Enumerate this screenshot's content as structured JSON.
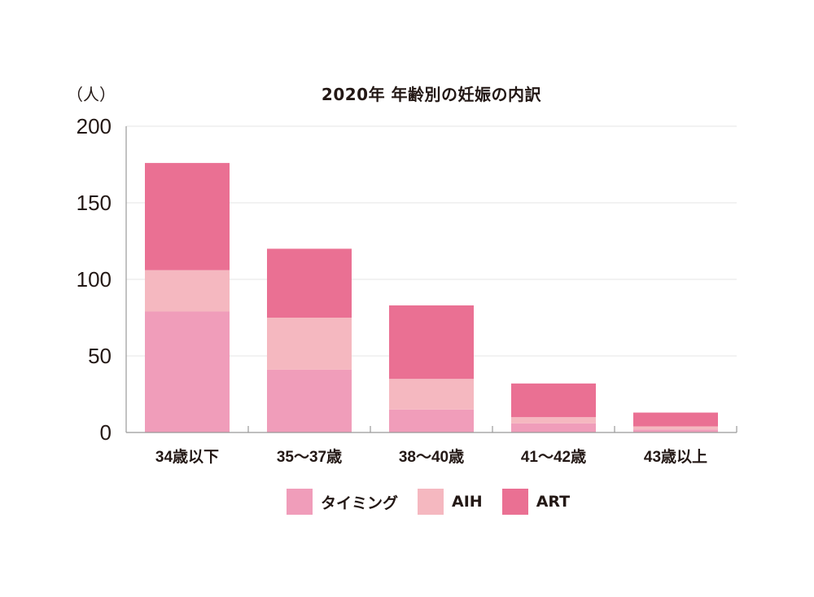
{
  "chart_data": {
    "type": "bar",
    "stacked": true,
    "title": "2020年 年齢別の妊娠の内訳",
    "y_unit": "（人）",
    "xlabel": "",
    "ylabel": "",
    "ylim": [
      0,
      200
    ],
    "yticks": [
      0,
      50,
      100,
      150,
      200
    ],
    "grid": true,
    "legend_position": "bottom",
    "categories": [
      "34歳以下",
      "35〜37歳",
      "38〜40歳",
      "41〜42歳",
      "43歳以上"
    ],
    "series": [
      {
        "name": "タイミング",
        "color": "#f09dba",
        "values": [
          79,
          41,
          15,
          6,
          2
        ]
      },
      {
        "name": "AIH",
        "color": "#f5b8c0",
        "values": [
          27,
          34,
          20,
          4,
          2
        ]
      },
      {
        "name": "ART",
        "color": "#ea7093",
        "values": [
          70,
          45,
          48,
          22,
          9
        ]
      }
    ]
  }
}
